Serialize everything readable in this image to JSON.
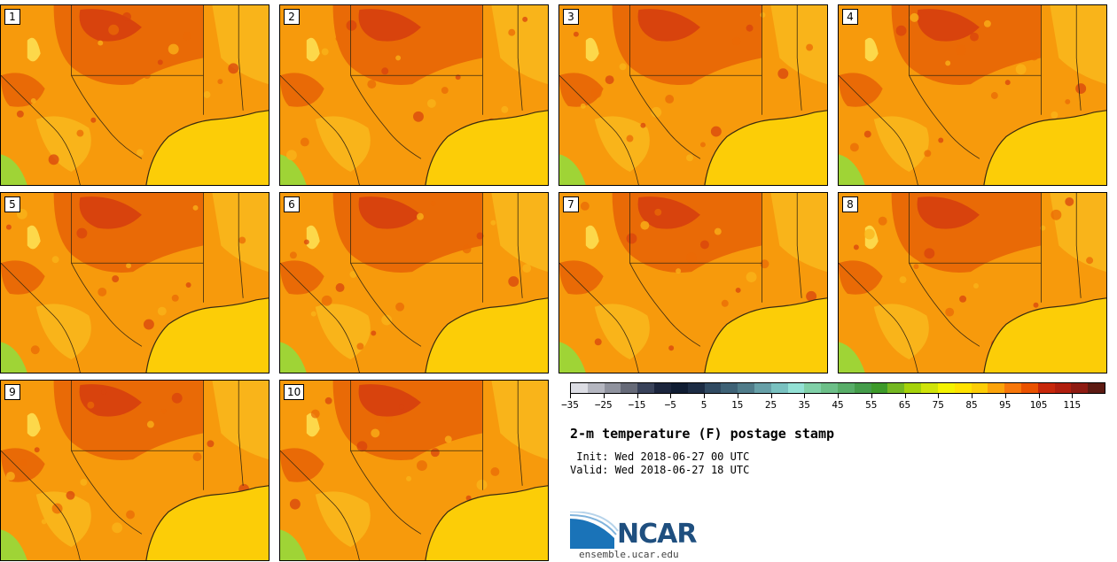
{
  "colors": {
    "land_base": "#f79a0c",
    "land_hot": "#e96a06",
    "land_hottest": "#d8430d",
    "land_warm": "#f9b41a",
    "land_cool": "#fdd84a",
    "land_green": "#9fd436",
    "gulf": "#fccd07",
    "border": "#3a2a10"
  },
  "stamps": [
    {
      "label": "1"
    },
    {
      "label": "2"
    },
    {
      "label": "3"
    },
    {
      "label": "4"
    },
    {
      "label": "5"
    },
    {
      "label": "6"
    },
    {
      "label": "7"
    },
    {
      "label": "8"
    },
    {
      "label": "9"
    },
    {
      "label": "10"
    }
  ],
  "colorbar": {
    "colors": [
      "#dcdde4",
      "#b4b6c0",
      "#8f929e",
      "#666a78",
      "#39425a",
      "#1b253d",
      "#0f1c32",
      "#1c2c44",
      "#304a62",
      "#3e6276",
      "#507c8a",
      "#67a0a8",
      "#79c1c0",
      "#93e1d5",
      "#80d0a8",
      "#6cbf88",
      "#58ad68",
      "#449c4a",
      "#3d9a2a",
      "#74b722",
      "#a5d20a",
      "#cfe30a",
      "#f3f201",
      "#ffe200",
      "#fccd07",
      "#fba30b",
      "#f7770b",
      "#ea5200",
      "#c7270b",
      "#b01e0e",
      "#8e1b12",
      "#5c1a12"
    ],
    "tick_labels": [
      "−35",
      "−25",
      "−15",
      "−5",
      "5",
      "15",
      "25",
      "35",
      "45",
      "55",
      "65",
      "75",
      "85",
      "95",
      "105",
      "115"
    ]
  },
  "title": "2-m temperature (F) postage stamp",
  "init_line": " Init: Wed 2018-06-27 00 UTC",
  "valid_line": "Valid: Wed 2018-06-27 18 UTC",
  "logo": {
    "name": "NCAR",
    "url": "ensemble.ucar.edu"
  }
}
